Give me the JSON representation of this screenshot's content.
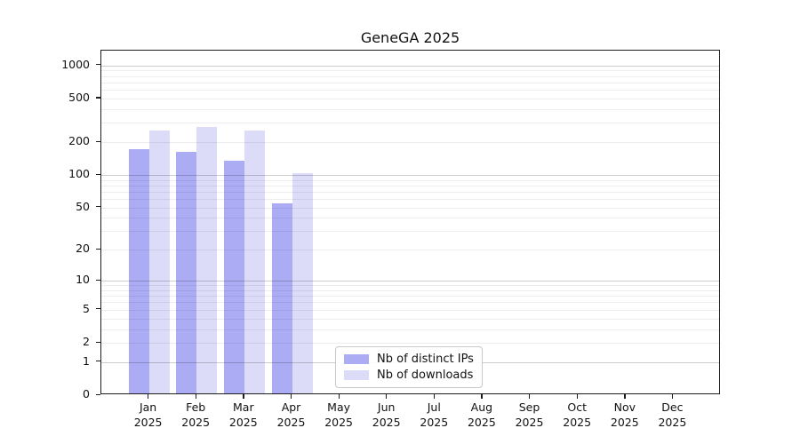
{
  "figure": {
    "background": "#ffffff"
  },
  "chart_data": {
    "type": "bar",
    "title": "GeneGA 2025",
    "x_categories": [
      "Jan",
      "Feb",
      "Mar",
      "Apr",
      "May",
      "Jun",
      "Jul",
      "Aug",
      "Sep",
      "Oct",
      "Nov",
      "Dec"
    ],
    "x_year_label": "2025",
    "y_scale": "log1p",
    "y_ticks": [
      0,
      1,
      2,
      5,
      10,
      20,
      50,
      100,
      200,
      500,
      1000
    ],
    "y_major_gridlines": [
      1,
      10,
      100,
      1000
    ],
    "y_minor_gridline_subs": [
      2,
      3,
      4,
      5,
      6,
      7,
      8,
      9
    ],
    "grid": true,
    "legend_position": "lower-center",
    "series": [
      {
        "name": "Nb of distinct IPs",
        "color": "#acacf5",
        "values": [
          165,
          158,
          130,
          53,
          0,
          0,
          0,
          0,
          0,
          0,
          0,
          0
        ]
      },
      {
        "name": "Nb of downloads",
        "color": "#dcdcf8",
        "values": [
          248,
          267,
          244,
          100,
          0,
          0,
          0,
          0,
          0,
          0,
          0,
          0
        ]
      }
    ]
  }
}
